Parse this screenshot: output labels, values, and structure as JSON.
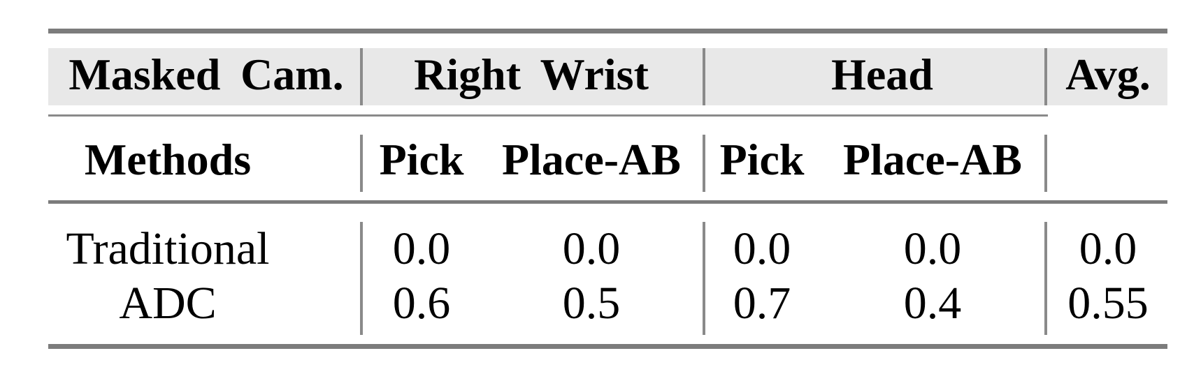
{
  "table": {
    "group_header": {
      "masked_cam": "Masked Cam.",
      "right_wrist": "Right Wrist",
      "head": "Head",
      "avg": "Avg."
    },
    "sub_header": {
      "methods": "Methods",
      "right_wrist_pick": "Pick",
      "right_wrist_place_ab": "Place-AB",
      "head_pick": "Pick",
      "head_place_ab": "Place-AB"
    },
    "rows": [
      {
        "method": "Traditional",
        "right_wrist_pick": "0.0",
        "right_wrist_place_ab": "0.0",
        "head_pick": "0.0",
        "head_place_ab": "0.0",
        "avg": "0.0"
      },
      {
        "method": "ADC",
        "right_wrist_pick": "0.6",
        "right_wrist_place_ab": "0.5",
        "head_pick": "0.7",
        "head_place_ab": "0.4",
        "avg": "0.55"
      }
    ]
  },
  "colors": {
    "header_fill": "#e8e8e8",
    "rule_heavy": "#7c7c7c",
    "rule_light": "#8a8a8a",
    "text": "#000000",
    "background": "#ffffff"
  },
  "chart_data": {
    "type": "table",
    "title": "",
    "column_groups": [
      "Masked Cam.",
      "Right Wrist",
      "Head",
      "Avg."
    ],
    "columns": [
      "Methods",
      "Right Wrist Pick",
      "Right Wrist Place-AB",
      "Head Pick",
      "Head Place-AB",
      "Avg."
    ],
    "rows": [
      [
        "Traditional",
        0.0,
        0.0,
        0.0,
        0.0,
        0.0
      ],
      [
        "ADC",
        0.6,
        0.5,
        0.7,
        0.4,
        0.55
      ]
    ]
  }
}
